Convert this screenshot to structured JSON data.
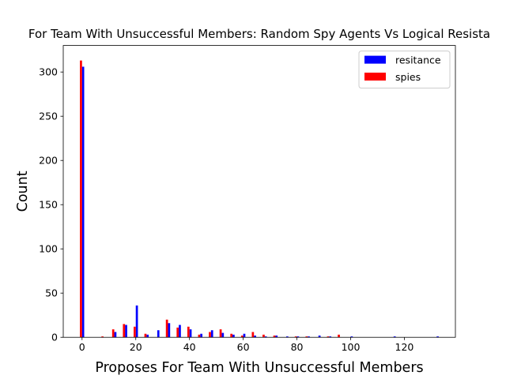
{
  "chart_data": {
    "type": "bar",
    "title": "For Team With Unsuccessful Members: Random Spy Agents Vs Logical Resista",
    "xlabel": "Proposes For Team With Unsuccessful Members",
    "ylabel": "Count",
    "xlim": [
      -7,
      139
    ],
    "ylim": [
      0,
      330
    ],
    "xticks": [
      0,
      20,
      40,
      60,
      80,
      100,
      120
    ],
    "yticks": [
      0,
      50,
      100,
      150,
      200,
      250,
      300
    ],
    "grid": false,
    "legend_position": "top-right",
    "bin_width": 4,
    "series": [
      {
        "name": "resitance",
        "color": "#0000ff",
        "offset": 0.4,
        "points": [
          [
            0,
            306
          ],
          [
            12,
            6
          ],
          [
            16,
            14
          ],
          [
            20,
            36
          ],
          [
            24,
            3
          ],
          [
            28,
            8
          ],
          [
            32,
            16
          ],
          [
            36,
            14
          ],
          [
            40,
            9
          ],
          [
            44,
            4
          ],
          [
            48,
            8
          ],
          [
            52,
            5
          ],
          [
            56,
            3
          ],
          [
            60,
            4
          ],
          [
            64,
            2
          ],
          [
            68,
            1
          ],
          [
            72,
            2
          ],
          [
            76,
            1
          ],
          [
            80,
            1
          ],
          [
            84,
            1
          ],
          [
            88,
            2
          ],
          [
            92,
            1
          ],
          [
            100,
            1
          ],
          [
            116,
            1
          ],
          [
            132,
            1
          ]
        ]
      },
      {
        "name": "spies",
        "color": "#ff0000",
        "offset": -0.4,
        "points": [
          [
            0,
            313
          ],
          [
            8,
            1
          ],
          [
            12,
            9
          ],
          [
            16,
            15
          ],
          [
            20,
            12
          ],
          [
            24,
            4
          ],
          [
            32,
            20
          ],
          [
            36,
            11
          ],
          [
            40,
            12
          ],
          [
            44,
            3
          ],
          [
            48,
            6
          ],
          [
            52,
            9
          ],
          [
            56,
            4
          ],
          [
            60,
            2
          ],
          [
            64,
            6
          ],
          [
            68,
            3
          ],
          [
            72,
            2
          ],
          [
            80,
            1
          ],
          [
            84,
            1
          ],
          [
            92,
            1
          ],
          [
            96,
            3
          ]
        ]
      }
    ]
  }
}
